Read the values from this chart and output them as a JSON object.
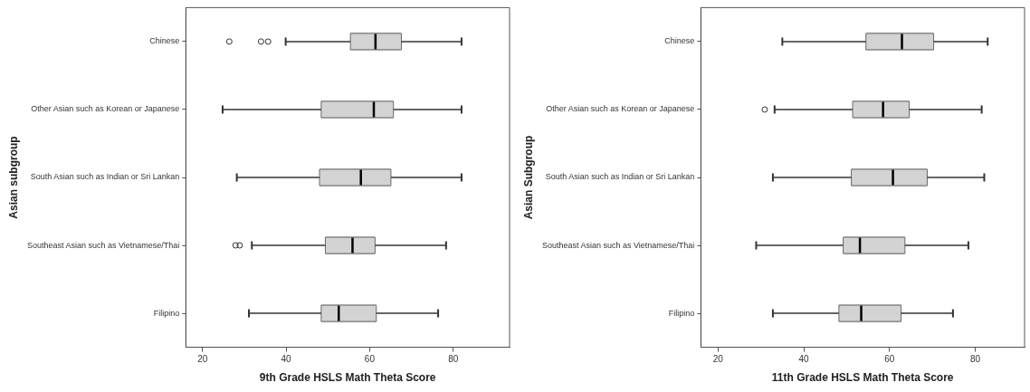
{
  "chart_data": [
    {
      "type": "box",
      "orientation": "horizontal",
      "xlabel": "9th Grade HSLS Math Theta Score",
      "ylabel": "Asian subgroup",
      "categories": [
        "Chinese",
        "Other Asian such as Korean or Japanese",
        "South Asian such as Indian or Sri Lankan",
        "Southeast Asian such as Vietnamese/Thai",
        "Filipino"
      ],
      "color": "#d3d3d3",
      "xlim": [
        16,
        93.5
      ],
      "xticks": [
        20,
        40,
        60,
        80
      ],
      "grid": false,
      "legend": false,
      "boxes": [
        {
          "low": 39.9,
          "q1": 55.4,
          "median": 61.4,
          "q3": 67.6,
          "high": 82.0,
          "outliers": [
            26.4,
            34.0,
            35.7
          ]
        },
        {
          "low": 24.8,
          "q1": 48.4,
          "median": 61.0,
          "q3": 65.7,
          "high": 82.0
        },
        {
          "low": 28.2,
          "q1": 48.0,
          "median": 57.9,
          "q3": 65.1,
          "high": 82.0
        },
        {
          "low": 31.8,
          "q1": 49.4,
          "median": 55.9,
          "q3": 61.3,
          "high": 78.3,
          "outliers": [
            27.9,
            28.9
          ]
        },
        {
          "low": 31.1,
          "q1": 48.4,
          "median": 52.6,
          "q3": 61.6,
          "high": 76.4
        }
      ]
    },
    {
      "type": "box",
      "orientation": "horizontal",
      "xlabel": "11th Grade HSLS Math Theta Score",
      "ylabel": "Asian Subgroup",
      "categories": [
        "Chinese",
        "Other Asian such as Korean or Japanese",
        "South Asian such as Indian or Sri Lankan",
        "Southeast Asian such as Vietnamese/Thai",
        "Filipino"
      ],
      "color": "#d3d3d3",
      "xlim": [
        16,
        91.5
      ],
      "xticks": [
        20,
        40,
        60,
        80
      ],
      "grid": false,
      "legend": false,
      "boxes": [
        {
          "low": 35.0,
          "q1": 54.5,
          "median": 62.9,
          "q3": 70.3,
          "high": 82.9
        },
        {
          "low": 33.2,
          "q1": 51.4,
          "median": 58.5,
          "q3": 64.6,
          "high": 81.5,
          "outliers": [
            30.9
          ]
        },
        {
          "low": 32.8,
          "q1": 51.1,
          "median": 60.8,
          "q3": 68.8,
          "high": 82.1
        },
        {
          "low": 28.9,
          "q1": 49.2,
          "median": 53.1,
          "q3": 63.6,
          "high": 78.4
        },
        {
          "low": 32.8,
          "q1": 48.2,
          "median": 53.4,
          "q3": 62.7,
          "high": 74.8
        }
      ]
    }
  ]
}
